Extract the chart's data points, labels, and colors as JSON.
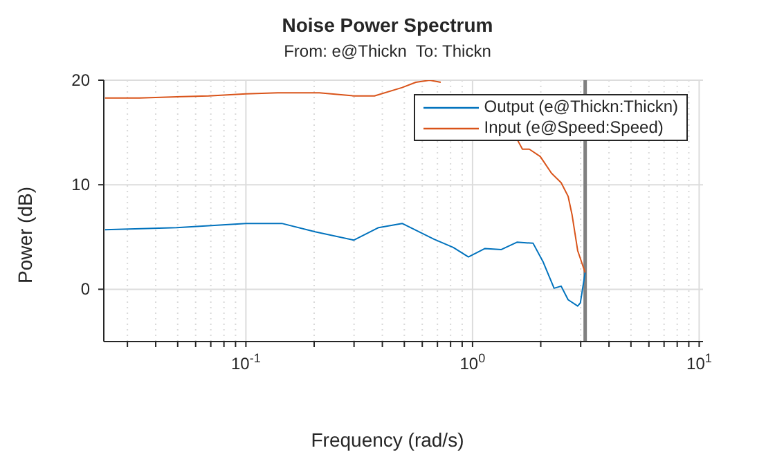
{
  "chart_data": {
    "type": "line",
    "title": "Noise Power Spectrum",
    "subtitle": "From: e@Thickn  To: Thickn",
    "xlabel": "Frequency (rad/s)",
    "ylabel": "Power (dB)",
    "log": "x",
    "xlim": [
      0.0236,
      10.4
    ],
    "ylim": [
      -5,
      20
    ],
    "xticks": [
      {
        "value": 0.03,
        "label": null
      },
      {
        "value": 0.04,
        "label": null
      },
      {
        "value": 0.05,
        "label": null
      },
      {
        "value": 0.06,
        "label": null
      },
      {
        "value": 0.07,
        "label": null
      },
      {
        "value": 0.08,
        "label": null
      },
      {
        "value": 0.09,
        "label": null
      },
      {
        "value": 0.1,
        "label": "10$^{-1}$"
      },
      {
        "value": 0.2,
        "label": null
      },
      {
        "value": 0.3,
        "label": null
      },
      {
        "value": 0.4,
        "label": null
      },
      {
        "value": 0.5,
        "label": null
      },
      {
        "value": 0.6,
        "label": null
      },
      {
        "value": 0.7,
        "label": null
      },
      {
        "value": 0.8,
        "label": null
      },
      {
        "value": 0.9,
        "label": null
      },
      {
        "value": 1,
        "label": "10$^{0}$"
      },
      {
        "value": 2,
        "label": null
      },
      {
        "value": 3,
        "label": null
      },
      {
        "value": 4,
        "label": null
      },
      {
        "value": 5,
        "label": null
      },
      {
        "value": 6,
        "label": null
      },
      {
        "value": 7,
        "label": null
      },
      {
        "value": 8,
        "label": null
      },
      {
        "value": 9,
        "label": null
      },
      {
        "value": 10,
        "label": "10$^{1}$"
      }
    ],
    "yticks": [
      0,
      10,
      20
    ],
    "grid": true,
    "legend": "top right",
    "line_style": "solid",
    "marker": "none",
    "ref_lines": [
      {
        "axis": "x",
        "value": 3.14,
        "color": "#808080"
      }
    ],
    "series": [
      {
        "name": "Output (e@Thickn:Thickn)",
        "color": "#0072bd",
        "x": [
          0.0239,
          0.0496,
          0.1,
          0.144,
          0.202,
          0.299,
          0.385,
          0.489,
          0.675,
          0.822,
          0.959,
          1.135,
          1.34,
          1.57,
          1.85,
          2.05,
          2.29,
          2.46,
          2.64,
          2.91,
          2.99,
          3.14
        ],
        "values": [
          5.7,
          5.9,
          6.3,
          6.3,
          5.5,
          4.7,
          5.9,
          6.3,
          4.8,
          4.0,
          3.1,
          3.9,
          3.8,
          4.5,
          4.4,
          2.6,
          0.1,
          0.3,
          -1.0,
          -1.6,
          -1.3,
          1.6
        ]
      },
      {
        "name": "Input (e@Speed:Speed)",
        "color": "#d95319",
        "x": [
          0.0239,
          0.0339,
          0.0684,
          0.1,
          0.138,
          0.211,
          0.299,
          0.369,
          0.489,
          0.562,
          0.647,
          0.724,
          1.0,
          1.55,
          1.66,
          1.78,
          1.99,
          2.23,
          2.46,
          2.64,
          2.75,
          2.91,
          3.14
        ],
        "values": [
          18.3,
          18.3,
          18.5,
          18.7,
          18.8,
          18.8,
          18.5,
          18.5,
          19.3,
          19.8,
          20,
          19.8,
          null,
          14.6,
          13.4,
          13.4,
          12.7,
          11.1,
          10.2,
          8.9,
          7.1,
          3.7,
          1.6
        ]
      }
    ]
  }
}
